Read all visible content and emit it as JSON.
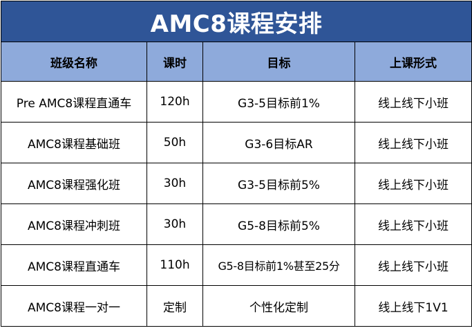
{
  "title": "AMC8课程安排",
  "headers": [
    "班级名称",
    "课时",
    "目标",
    "上课形式"
  ],
  "rows": [
    [
      "Pre AMC8课程直通车",
      "120h",
      "G3-5目标前1%",
      "线上线下小班"
    ],
    [
      "AMC8课程基础班",
      "50h",
      "G3-6目标AR",
      "线上线下小班"
    ],
    [
      "AMC8课程强化班",
      "30h",
      "G3-5目标前5%",
      "线上线下小班"
    ],
    [
      "AMC8课程冲刺班",
      "30h",
      "G5-8目标前5%",
      "线上线下小班"
    ],
    [
      "AMC8课程直通车",
      "110h",
      "G5-8目标前1%甚至25分",
      "线上线下小班"
    ],
    [
      "AMC8课程一对一",
      "定制",
      "个性化定制",
      "线上线下1V1"
    ]
  ],
  "colors": {
    "title_bg": "#2f5597",
    "header_bg": "#8eaadb",
    "border": "#000000"
  }
}
